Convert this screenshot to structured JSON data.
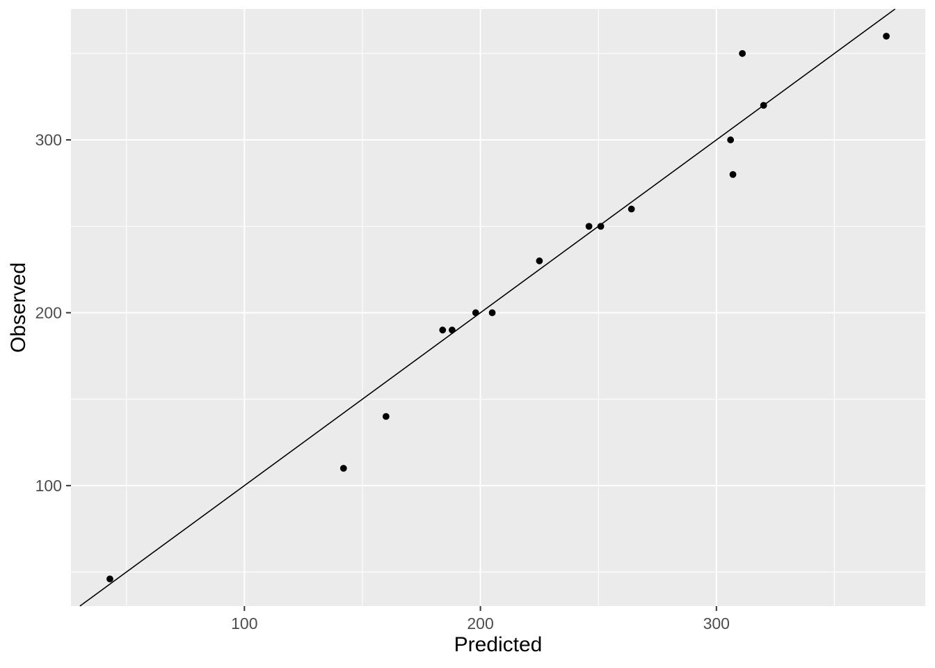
{
  "page": {
    "background": "#FFFFFF"
  },
  "chart_data": {
    "type": "scatter",
    "title": "",
    "xlabel": "Predicted",
    "ylabel": "Observed",
    "xlim": [
      26.5,
      388.5
    ],
    "ylim": [
      30.3,
      375.7
    ],
    "x_major_ticks": [
      100,
      200,
      300
    ],
    "x_minor_ticks": [
      50,
      150,
      250,
      350
    ],
    "y_major_ticks": [
      100,
      200,
      300
    ],
    "y_minor_ticks": [
      50,
      150,
      250,
      350
    ],
    "grid": "major and minor, white on grey panel",
    "legend": "none",
    "points": [
      [
        43,
        46
      ],
      [
        142,
        110
      ],
      [
        160,
        140
      ],
      [
        184,
        190
      ],
      [
        188,
        190
      ],
      [
        198,
        200
      ],
      [
        205,
        200
      ],
      [
        225,
        230
      ],
      [
        246,
        250
      ],
      [
        251,
        250
      ],
      [
        264,
        260
      ],
      [
        306,
        300
      ],
      [
        307,
        280
      ],
      [
        311,
        350
      ],
      [
        320,
        320
      ],
      [
        372,
        360
      ]
    ],
    "reference_line": {
      "type": "identity",
      "slope": 1,
      "intercept": 0
    },
    "style": {
      "panel_background": "#EBEBEB",
      "grid_color": "#FFFFFF",
      "point_color": "#000000",
      "line_color": "#000000",
      "tick_label_color": "#4D4D4D",
      "tick_mark_color": "#333333",
      "axis_title_color": "#000000"
    }
  }
}
